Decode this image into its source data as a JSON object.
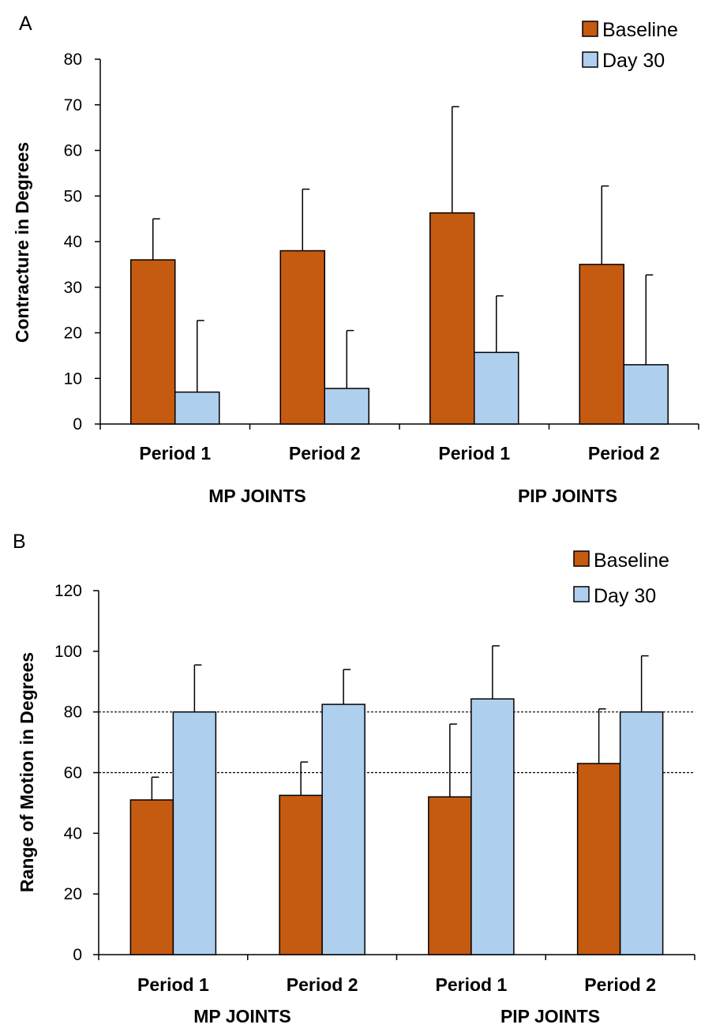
{
  "colors": {
    "baseline": "#C55A11",
    "day30": "#AFCFEE",
    "stroke": "#000000"
  },
  "chart_data": [
    {
      "type": "bar",
      "panel_label": "A",
      "categories": [
        "Period 1",
        "Period 2",
        "Period 1",
        "Period 2"
      ],
      "groups": [
        {
          "label": "MP JOINTS",
          "categories": [
            0,
            1
          ]
        },
        {
          "label": "PIP JOINTS",
          "categories": [
            2,
            3
          ]
        }
      ],
      "series": [
        {
          "name": "Baseline",
          "values": [
            36,
            38,
            46.3,
            35
          ],
          "errors": [
            9,
            13.5,
            23.3,
            17.2
          ]
        },
        {
          "name": "Day 30",
          "values": [
            7,
            7.8,
            15.7,
            13
          ],
          "errors": [
            15.7,
            12.7,
            12.4,
            19.7
          ]
        }
      ],
      "xlabel": "",
      "ylabel": "Contracture in Degrees",
      "ylim": [
        0,
        80
      ],
      "yticks": [
        "0",
        "10",
        "20",
        "30",
        "40",
        "50",
        "60",
        "70",
        "80"
      ],
      "reference_lines": [],
      "legend_position": "top-right",
      "grid": false
    },
    {
      "type": "bar",
      "panel_label": "B",
      "categories": [
        "Period 1",
        "Period 2",
        "Period 1",
        "Period 2"
      ],
      "groups": [
        {
          "label": "MP JOINTS",
          "categories": [
            0,
            1
          ]
        },
        {
          "label": "PIP JOINTS",
          "categories": [
            2,
            3
          ]
        }
      ],
      "series": [
        {
          "name": "Baseline",
          "values": [
            51,
            52.5,
            52,
            63
          ],
          "errors": [
            7.5,
            11,
            24,
            18
          ]
        },
        {
          "name": "Day 30",
          "values": [
            80,
            82.5,
            84.3,
            80
          ],
          "errors": [
            15.5,
            11.5,
            17.5,
            18.5
          ]
        }
      ],
      "xlabel": "",
      "ylabel": "Range of Motion in Degrees",
      "ylim": [
        0,
        120
      ],
      "yticks": [
        "0",
        "20",
        "40",
        "60",
        "80",
        "100",
        "120"
      ],
      "reference_lines": [
        60,
        80
      ],
      "legend_position": "top-right",
      "grid": false
    }
  ]
}
